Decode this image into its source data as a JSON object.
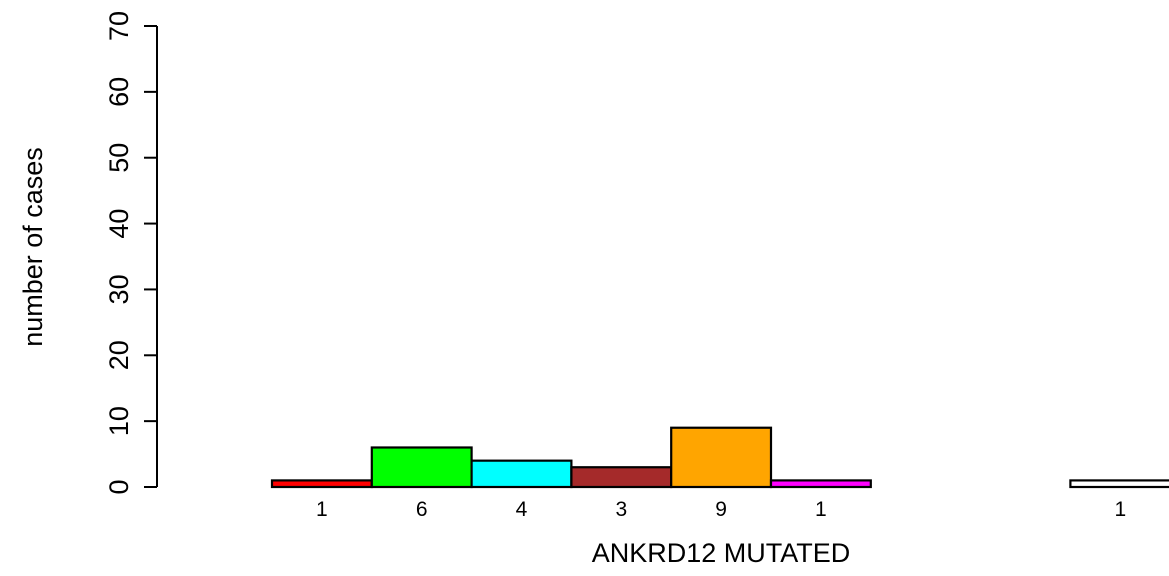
{
  "chart_data": {
    "type": "bar",
    "title": "",
    "xlabel": "ANKRD12 MUTATED",
    "ylabel": "number of cases",
    "ylim": [
      0,
      70
    ],
    "yticks": [
      0,
      10,
      20,
      30,
      40,
      50,
      60,
      70
    ],
    "values": [
      1,
      6,
      4,
      3,
      9,
      1,
      0,
      0,
      1
    ],
    "data_labels": [
      "1",
      "6",
      "4",
      "3",
      "9",
      "1",
      "",
      "",
      "1"
    ],
    "colors": [
      "#ff0000",
      "#00ff00",
      "#00ffff",
      "#a52a2a",
      "#ffa500",
      "#ff00ff",
      "#ffffff",
      "#ffffff",
      "#ffffff"
    ],
    "grid": false,
    "legend": "none"
  }
}
